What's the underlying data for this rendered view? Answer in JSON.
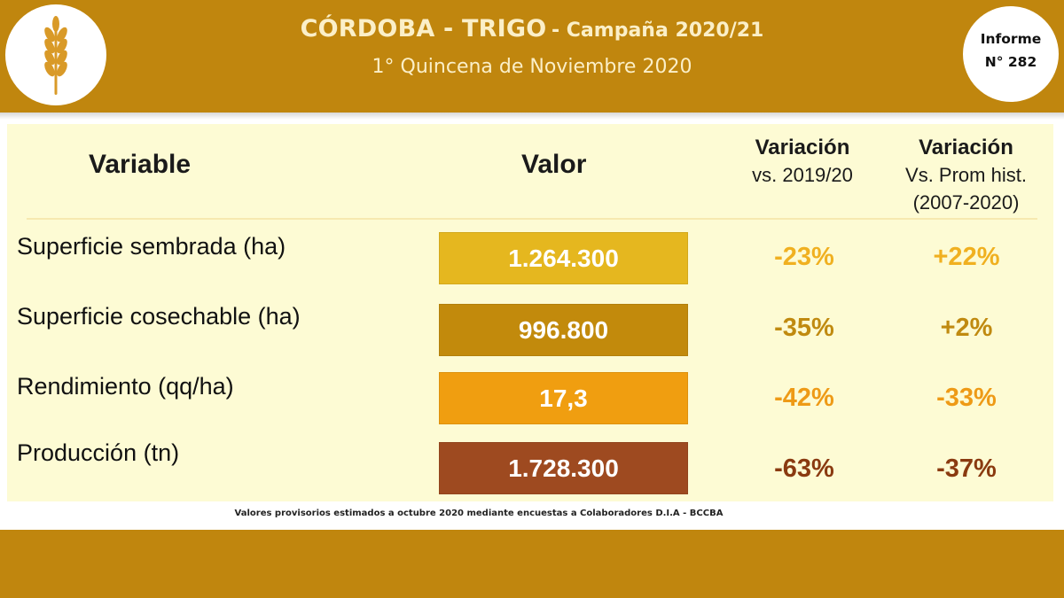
{
  "header": {
    "title_main": "CÓRDOBA - TRIGO",
    "title_sub": "- Campaña 2020/21",
    "subtitle": "1° Quincena de Noviembre 2020",
    "report_line1": "Informe",
    "report_line2": "N° 282",
    "logo_icon": "wheat-icon"
  },
  "table": {
    "headers": {
      "variable": "Variable",
      "valor": "Valor",
      "var1_title": "Variación",
      "var1_sub": "vs. 2019/20",
      "var2_title": "Variación",
      "var2_sub1": "Vs. Prom hist.",
      "var2_sub2": "(2007-2020)"
    },
    "rows": [
      {
        "label": "Superficie sembrada (ha)",
        "value": "1.264.300",
        "var_prev": "-23%",
        "var_hist": "+22%",
        "box_color": "#e5b71f",
        "pct_color": "#f0b020"
      },
      {
        "label": "Superficie cosechable (ha)",
        "value": "996.800",
        "var_prev": "-35%",
        "var_hist": "+2%",
        "box_color": "#c28a0c",
        "pct_color": "#c08a10"
      },
      {
        "label": "Rendimiento (qq/ha)",
        "value": "17,3",
        "var_prev": "-42%",
        "var_hist": "-33%",
        "box_color": "#f09e10",
        "pct_color": "#ee9a16"
      },
      {
        "label": "Producción (tn)",
        "value": "1.728.300",
        "var_prev": "-63%",
        "var_hist": "-37%",
        "box_color": "#9e4a20",
        "pct_color": "#8a3a10"
      }
    ]
  },
  "footnote": "Valores provisorios estimados a octubre 2020 mediante encuestas a Colaboradores D.I.A - BCCBA",
  "colors": {
    "brand": "#c0860e",
    "panel": "#fdfbd4",
    "title_text": "#fbefc8"
  }
}
